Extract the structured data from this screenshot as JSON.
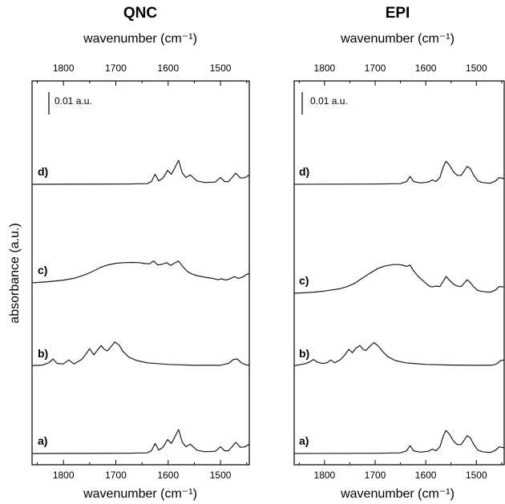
{
  "ylabel": "absorbance (a.u.)",
  "chart_data": [
    {
      "type": "line",
      "title": "QNC",
      "xlabel_top": "wavenumber (cm⁻¹)",
      "xlabel_bottom": "wavenumber (cm⁻¹)",
      "ylabel": "absorbance (a.u.)",
      "xlim": [
        1860,
        1445
      ],
      "xticks": [
        1800,
        1700,
        1600,
        1500
      ],
      "x_reversed": true,
      "scale_bar": "0.01 a.u.",
      "series": [
        {
          "name": "a)",
          "offset": 0.0,
          "x": [
            1860,
            1680,
            1640,
            1632,
            1625,
            1618,
            1610,
            1601,
            1594,
            1588,
            1580,
            1573,
            1566,
            1558,
            1545,
            1530,
            1510,
            1500,
            1492,
            1485,
            1478,
            1471,
            1462,
            1453,
            1445
          ],
          "y": [
            0,
            0.0001,
            0.0003,
            0.0012,
            0.0045,
            0.0015,
            0.0028,
            0.0062,
            0.0045,
            0.007,
            0.0107,
            0.005,
            0.003,
            0.0042,
            0.0015,
            0.0008,
            0.001,
            0.003,
            0.0012,
            0.0012,
            0.003,
            0.005,
            0.0028,
            0.003,
            0.0042
          ]
        },
        {
          "name": "b)",
          "offset": 0.0135,
          "x": [
            1860,
            1840,
            1828,
            1820,
            1812,
            1800,
            1790,
            1780,
            1765,
            1757,
            1750,
            1742,
            1735,
            1728,
            1722,
            1716,
            1710,
            1702,
            1694,
            1686,
            1675,
            1660,
            1640,
            1600,
            1550,
            1500,
            1485,
            1475,
            1468,
            1460,
            1452,
            1445
          ],
          "y": [
            0.0002,
            0.0005,
            0.0015,
            0.0032,
            0.0012,
            0.001,
            0.0028,
            0.001,
            0.003,
            0.0055,
            0.0078,
            0.005,
            0.0072,
            0.0092,
            0.0075,
            0.0068,
            0.0085,
            0.0108,
            0.0095,
            0.0065,
            0.004,
            0.0025,
            0.0015,
            0.0008,
            0.0004,
            0.0004,
            0.0012,
            0.003,
            0.0032,
            0.0015,
            0.0006,
            0.0004
          ]
        },
        {
          "name": "c)",
          "offset": 0.026,
          "x": [
            1860,
            1830,
            1800,
            1780,
            1760,
            1745,
            1730,
            1715,
            1700,
            1685,
            1670,
            1655,
            1645,
            1635,
            1628,
            1620,
            1612,
            1603,
            1595,
            1588,
            1580,
            1572,
            1563,
            1555,
            1545,
            1530,
            1515,
            1505,
            1498,
            1490,
            1482,
            1474,
            1466,
            1458,
            1450,
            1445
          ],
          "y": [
            0,
            0.0005,
            0.0012,
            0.002,
            0.0035,
            0.005,
            0.0068,
            0.008,
            0.0087,
            0.009,
            0.0091,
            0.009,
            0.0086,
            0.0085,
            0.0098,
            0.008,
            0.0082,
            0.009,
            0.0078,
            0.0088,
            0.0097,
            0.0072,
            0.005,
            0.004,
            0.0032,
            0.0025,
            0.002,
            0.0014,
            0.0018,
            0.0012,
            0.0018,
            0.0028,
            0.002,
            0.0025,
            0.0038,
            0.0042
          ]
        },
        {
          "name": "d)",
          "offset": 0.0415,
          "x": [
            1860,
            1680,
            1640,
            1632,
            1625,
            1618,
            1610,
            1601,
            1594,
            1588,
            1580,
            1573,
            1566,
            1558,
            1545,
            1530,
            1510,
            1500,
            1492,
            1485,
            1478,
            1471,
            1462,
            1453,
            1445
          ],
          "y": [
            0,
            0.0001,
            0.0003,
            0.0012,
            0.0045,
            0.0015,
            0.0028,
            0.0062,
            0.0045,
            0.007,
            0.0107,
            0.005,
            0.003,
            0.0042,
            0.0015,
            0.0008,
            0.001,
            0.003,
            0.0012,
            0.0012,
            0.003,
            0.005,
            0.0028,
            0.003,
            0.0042
          ]
        }
      ]
    },
    {
      "type": "line",
      "title": "EPI",
      "xlabel_top": "wavenumber (cm⁻¹)",
      "xlabel_bottom": "wavenumber (cm⁻¹)",
      "ylabel": "absorbance (a.u.)",
      "xlim": [
        1860,
        1445
      ],
      "xticks": [
        1800,
        1700,
        1600,
        1500
      ],
      "x_reversed": true,
      "scale_bar": "0.01 a.u.",
      "series": [
        {
          "name": "a)",
          "offset": 0.0,
          "x": [
            1860,
            1700,
            1650,
            1638,
            1631,
            1624,
            1610,
            1595,
            1587,
            1580,
            1572,
            1565,
            1560,
            1553,
            1545,
            1538,
            1530,
            1524,
            1518,
            1512,
            1505,
            1497,
            1488,
            1480,
            1472,
            1462,
            1455,
            1445
          ],
          "y": [
            0,
            0.0001,
            0.0003,
            0.0012,
            0.0035,
            0.0012,
            0.0006,
            0.001,
            0.002,
            0.0012,
            0.003,
            0.008,
            0.0103,
            0.0085,
            0.0055,
            0.004,
            0.004,
            0.006,
            0.008,
            0.007,
            0.004,
            0.0015,
            0.0008,
            0.0006,
            0.0005,
            0.0015,
            0.003,
            0.0025
          ]
        },
        {
          "name": "b)",
          "offset": 0.0135,
          "x": [
            1860,
            1840,
            1830,
            1822,
            1814,
            1805,
            1795,
            1788,
            1780,
            1768,
            1760,
            1752,
            1745,
            1738,
            1730,
            1724,
            1718,
            1710,
            1702,
            1694,
            1685,
            1675,
            1660,
            1640,
            1600,
            1550,
            1500,
            1470,
            1460,
            1452,
            1445
          ],
          "y": [
            0.0002,
            0.001,
            0.0018,
            0.003,
            0.0018,
            0.0012,
            0.0015,
            0.0028,
            0.0015,
            0.003,
            0.005,
            0.0075,
            0.006,
            0.008,
            0.0092,
            0.0075,
            0.007,
            0.009,
            0.0105,
            0.009,
            0.0065,
            0.0042,
            0.0025,
            0.0015,
            0.0008,
            0.0005,
            0.0004,
            0.0004,
            0.001,
            0.0025,
            0.0028
          ]
        },
        {
          "name": "c)",
          "offset": 0.024,
          "x": [
            1860,
            1840,
            1820,
            1800,
            1785,
            1770,
            1755,
            1740,
            1725,
            1710,
            1695,
            1680,
            1665,
            1652,
            1645,
            1638,
            1631,
            1624,
            1615,
            1605,
            1595,
            1588,
            1580,
            1572,
            1565,
            1560,
            1553,
            1545,
            1538,
            1530,
            1524,
            1518,
            1512,
            1505,
            1497,
            1488,
            1480,
            1472,
            1462,
            1455,
            1445
          ],
          "y": [
            0,
            0.0002,
            0.0005,
            0.001,
            0.0015,
            0.002,
            0.003,
            0.0045,
            0.0068,
            0.009,
            0.011,
            0.0122,
            0.0128,
            0.0128,
            0.0125,
            0.012,
            0.0125,
            0.01,
            0.0075,
            0.0055,
            0.0035,
            0.0028,
            0.0032,
            0.003,
            0.0055,
            0.0075,
            0.0058,
            0.004,
            0.0032,
            0.003,
            0.0045,
            0.006,
            0.0048,
            0.0028,
            0.0012,
            0.0008,
            0.0006,
            0.0005,
            0.0015,
            0.003,
            0.0028
          ]
        },
        {
          "name": "d)",
          "offset": 0.0415,
          "x": [
            1860,
            1700,
            1650,
            1638,
            1631,
            1624,
            1610,
            1595,
            1587,
            1580,
            1572,
            1565,
            1560,
            1553,
            1545,
            1538,
            1530,
            1524,
            1518,
            1512,
            1505,
            1497,
            1488,
            1480,
            1472,
            1462,
            1455,
            1445
          ],
          "y": [
            0,
            0.0001,
            0.0003,
            0.0012,
            0.0035,
            0.0012,
            0.0006,
            0.001,
            0.002,
            0.0012,
            0.003,
            0.008,
            0.0103,
            0.0085,
            0.0055,
            0.004,
            0.004,
            0.006,
            0.008,
            0.007,
            0.004,
            0.0015,
            0.0008,
            0.0006,
            0.0005,
            0.0015,
            0.003,
            0.0025
          ]
        }
      ]
    }
  ]
}
